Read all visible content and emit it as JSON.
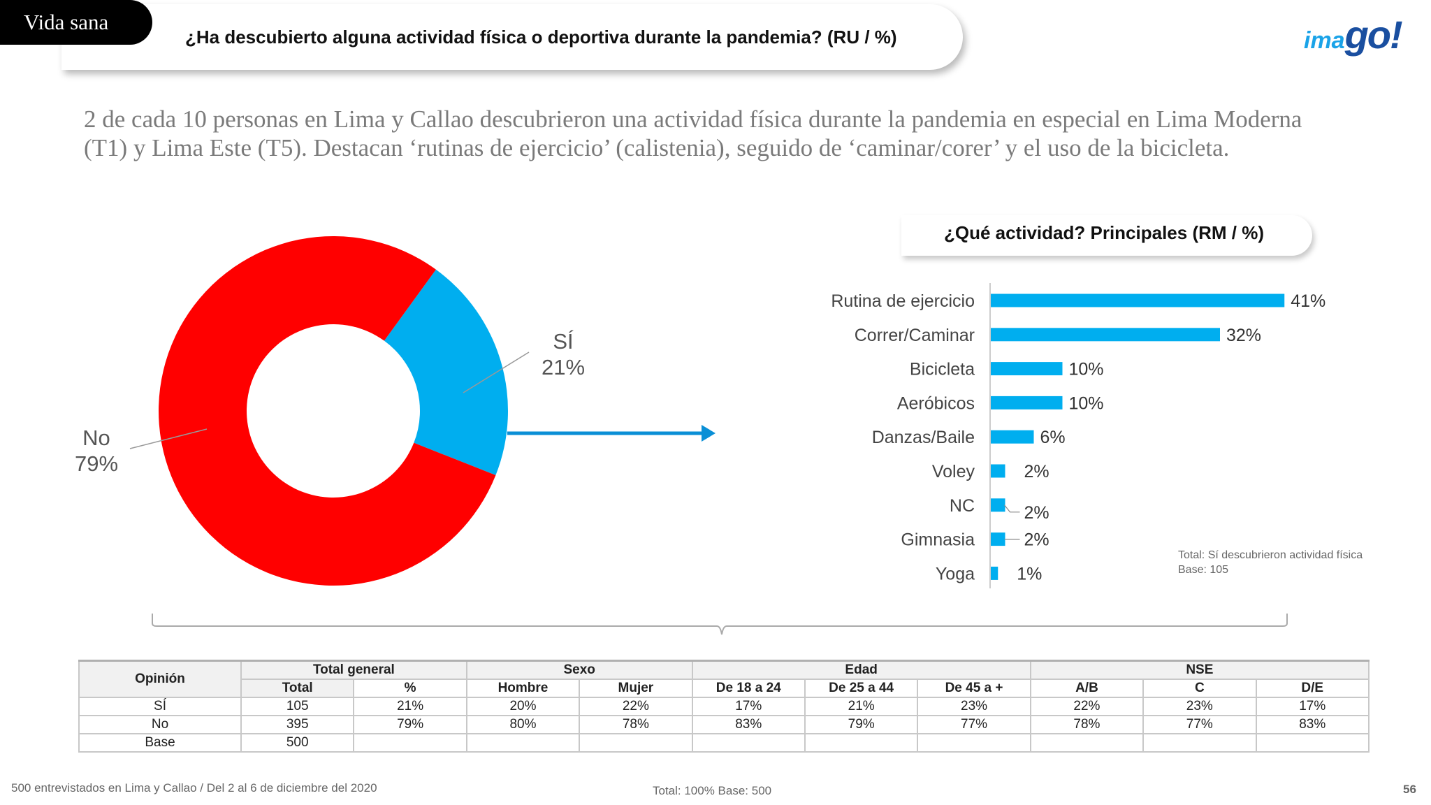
{
  "header": {
    "section_tag": "Vida sana",
    "question": "¿Ha descubierto alguna actividad física o deportiva durante la pandemia? (RU  /  %)",
    "logo_part1": "ima",
    "logo_part2": "go!"
  },
  "headline": "2 de cada 10 personas en Lima y Callao descubrieron una actividad física durante  la pandemia en especial en Lima Moderna (T1)  y Lima Este (T5). Destacan ‘rutinas de ejercicio’ (calistenia), seguido de ‘caminar/corer’ y el uso de la bicicleta.",
  "colors": {
    "no": "#ff0000",
    "si": "#00aeef",
    "bar": "#00aeef"
  },
  "chart_data": [
    {
      "type": "pie",
      "donut": true,
      "categories": [
        "SÍ",
        "No"
      ],
      "values": [
        21,
        79
      ],
      "value_labels": [
        "21%",
        "79%"
      ]
    },
    {
      "type": "bar",
      "orientation": "horizontal",
      "title": "¿Qué actividad? Principales (RM  /  %)",
      "categories": [
        "Rutina de ejercicio",
        "Correr/Caminar",
        "Bicicleta",
        "Aeróbicos",
        "Danzas/Baile",
        "Voley",
        "NC",
        "Gimnasia",
        "Yoga"
      ],
      "values": [
        41,
        32,
        10,
        10,
        6,
        2,
        2,
        2,
        1
      ],
      "value_labels": [
        "41%",
        "32%",
        "10%",
        "10%",
        "6%",
        "2%",
        "2%",
        "2%",
        "1%"
      ],
      "note": [
        "Total: Sí descubrieron actividad física",
        "Base: 105"
      ]
    }
  ],
  "table": {
    "header_opinion": "Opinión",
    "groups": [
      "Total general",
      "Sexo",
      "Edad",
      "NSE"
    ],
    "subheaders": [
      "Total",
      "%",
      "Hombre",
      "Mujer",
      "De 18 a 24",
      "De 25 a 44",
      "De 45 a +",
      "A/B",
      "C",
      "D/E"
    ],
    "rows": [
      {
        "label": "SÍ",
        "cells": [
          "105",
          "21%",
          "20%",
          "22%",
          "17%",
          "21%",
          "23%",
          "22%",
          "23%",
          "17%"
        ]
      },
      {
        "label": "No",
        "cells": [
          "395",
          "79%",
          "80%",
          "78%",
          "83%",
          "79%",
          "77%",
          "78%",
          "77%",
          "83%"
        ]
      },
      {
        "label": "Base",
        "cells": [
          "500",
          "",
          "",
          "",
          "",
          "",
          "",
          "",
          "",
          ""
        ]
      }
    ]
  },
  "footer": {
    "left": "500 entrevistados en Lima y Callao   /   Del 2 al 6 de diciembre del 2020",
    "middle": "Total: 100%   Base: 500",
    "page": "56"
  }
}
